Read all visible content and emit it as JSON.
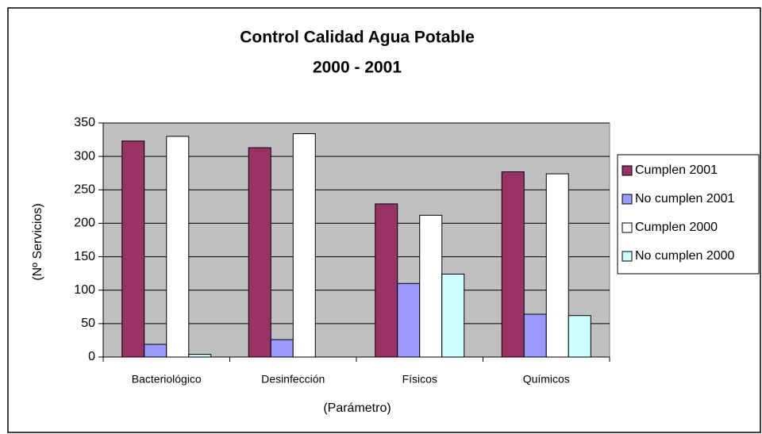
{
  "chart_data": {
    "type": "bar",
    "title": "Control Calidad Agua Potable",
    "subtitle": "2000 -  2001",
    "x_label": "(Parámetro)",
    "y_label": "(Nº Servicios)",
    "categories": [
      "Bacteriológico",
      "Desinfección",
      "Físicos",
      "Químicos"
    ],
    "series": [
      {
        "name": "Cumplen  2001",
        "color": "#993366",
        "values": [
          323,
          313,
          229,
          277
        ]
      },
      {
        "name": "No cumplen 2001",
        "color": "#9999ff",
        "values": [
          19,
          26,
          110,
          64
        ]
      },
      {
        "name": "Cumplen  2000",
        "color": "#ffffff",
        "values": [
          330,
          334,
          212,
          274
        ]
      },
      {
        "name": "No cumplen 2000",
        "color": "#ccffff",
        "values": [
          4,
          0,
          124,
          62
        ]
      }
    ],
    "ylim": [
      0,
      350
    ],
    "yticks": [
      0,
      50,
      100,
      150,
      200,
      250,
      300,
      350
    ],
    "grid": true,
    "legend": "right",
    "plot_background": "#c0c0c0"
  }
}
